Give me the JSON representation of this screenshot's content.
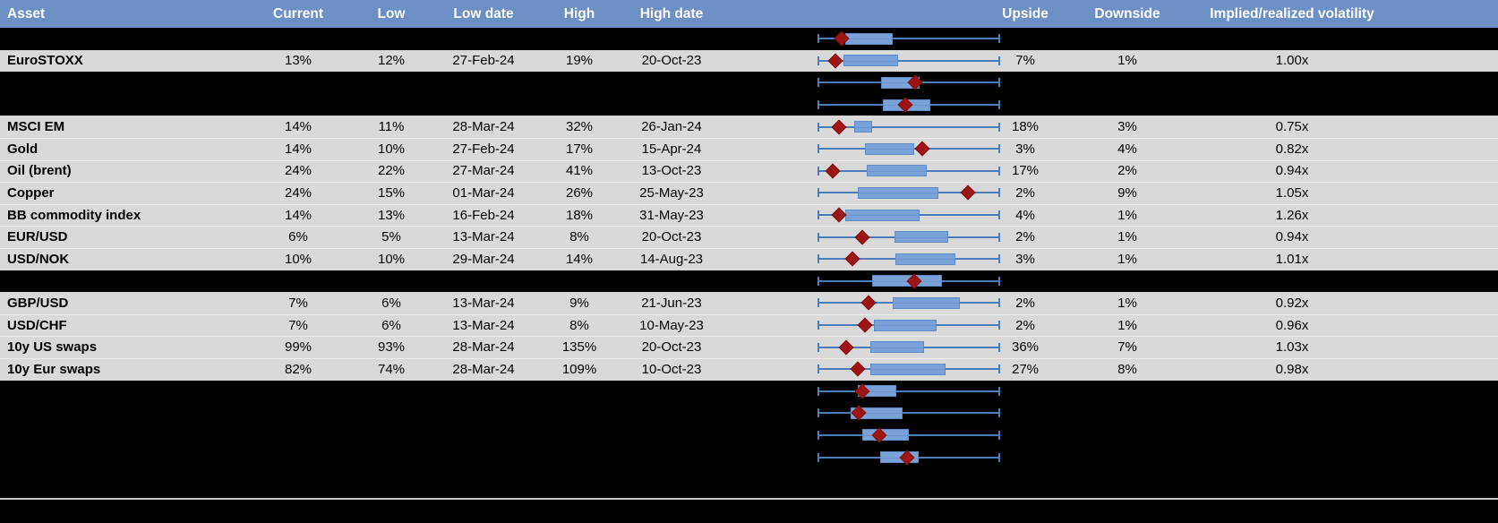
{
  "header": {
    "columns": [
      "Asset",
      "Current",
      "Low",
      "Low date",
      "High",
      "High date",
      "Upside",
      "Downside",
      "Implied/realized volatility"
    ]
  },
  "colors": {
    "header_bg": "#6b90c6",
    "header_text": "#ffffff",
    "row_bg": "#d9d9d9",
    "hidden_row_bg": "#000000",
    "whisker_blue": "#4a7ebb",
    "box_fill": "#7ba2d8",
    "box_border": "#5f8cc4",
    "marker_red": "#9e1414",
    "bottom_separator": "#c9c9c9"
  },
  "rows": [
    {
      "kind": "hidden",
      "label": "",
      "plot": {
        "box": [
          0.15,
          0.41
        ],
        "marker": 0.13
      }
    },
    {
      "kind": "asset",
      "label": "EuroSTOXX",
      "current": "13%",
      "low": "12%",
      "low_date": "27-Feb-24",
      "high": "19%",
      "high_date": "20-Oct-23",
      "upside": "7%",
      "downside": "1%",
      "implied": "1.00x",
      "plot": {
        "box": [
          0.14,
          0.44
        ],
        "marker": 0.1
      }
    },
    {
      "kind": "hidden",
      "label": "",
      "plot": {
        "box": [
          0.35,
          0.56
        ],
        "marker": 0.535
      }
    },
    {
      "kind": "hidden",
      "label": "",
      "plot": {
        "box": [
          0.36,
          0.62
        ],
        "marker": 0.48
      }
    },
    {
      "kind": "asset",
      "label": "MSCI EM",
      "current": "14%",
      "low": "11%",
      "low_date": "28-Mar-24",
      "high": "32%",
      "high_date": "26-Jan-24",
      "upside": "18%",
      "downside": "3%",
      "implied": "0.75x",
      "plot": {
        "box": [
          0.2,
          0.3
        ],
        "marker": 0.12
      }
    },
    {
      "kind": "asset",
      "label": "Gold",
      "current": "14%",
      "low": "10%",
      "low_date": "27-Feb-24",
      "high": "17%",
      "high_date": "15-Apr-24",
      "upside": "3%",
      "downside": "4%",
      "implied": "0.82x",
      "plot": {
        "box": [
          0.26,
          0.53
        ],
        "marker": 0.575
      }
    },
    {
      "kind": "asset",
      "label": "Oil (brent)",
      "current": "24%",
      "low": "22%",
      "low_date": "27-Mar-24",
      "high": "41%",
      "high_date": "13-Oct-23",
      "upside": "17%",
      "downside": "2%",
      "implied": "0.94x",
      "plot": {
        "box": [
          0.27,
          0.6
        ],
        "marker": 0.085
      }
    },
    {
      "kind": "asset",
      "label": "Copper",
      "current": "24%",
      "low": "15%",
      "low_date": "01-Mar-24",
      "high": "26%",
      "high_date": "25-May-23",
      "upside": "2%",
      "downside": "9%",
      "implied": "1.05x",
      "plot": {
        "box": [
          0.22,
          0.66
        ],
        "marker": 0.825
      }
    },
    {
      "kind": "asset",
      "label": "BB commodity index",
      "current": "14%",
      "low": "13%",
      "low_date": "16-Feb-24",
      "high": "18%",
      "high_date": "31-May-23",
      "upside": "4%",
      "downside": "1%",
      "implied": "1.26x",
      "plot": {
        "box": [
          0.15,
          0.56
        ],
        "marker": 0.12
      }
    },
    {
      "kind": "asset",
      "label": "EUR/USD",
      "current": "6%",
      "low": "5%",
      "low_date": "13-Mar-24",
      "high": "8%",
      "high_date": "20-Oct-23",
      "upside": "2%",
      "downside": "1%",
      "implied": "0.94x",
      "plot": {
        "box": [
          0.42,
          0.715
        ],
        "marker": 0.245
      }
    },
    {
      "kind": "asset",
      "label": "USD/NOK",
      "current": "10%",
      "low": "10%",
      "low_date": "29-Mar-24",
      "high": "14%",
      "high_date": "14-Aug-23",
      "upside": "3%",
      "downside": "1%",
      "implied": "1.01x",
      "plot": {
        "box": [
          0.425,
          0.755
        ],
        "marker": 0.19
      }
    },
    {
      "kind": "hidden",
      "label": "",
      "plot": {
        "box": [
          0.3,
          0.68
        ],
        "marker": 0.53
      }
    },
    {
      "kind": "asset",
      "label": "GBP/USD",
      "current": "7%",
      "low": "6%",
      "low_date": "13-Mar-24",
      "high": "9%",
      "high_date": "21-Jun-23",
      "upside": "2%",
      "downside": "1%",
      "implied": "0.92x",
      "plot": {
        "box": [
          0.41,
          0.78
        ],
        "marker": 0.28
      }
    },
    {
      "kind": "asset",
      "label": "USD/CHF",
      "current": "7%",
      "low": "6%",
      "low_date": "13-Mar-24",
      "high": "8%",
      "high_date": "10-May-23",
      "upside": "2%",
      "downside": "1%",
      "implied": "0.96x",
      "plot": {
        "box": [
          0.31,
          0.65
        ],
        "marker": 0.26
      }
    },
    {
      "kind": "asset",
      "label": "10y US swaps",
      "current": "99%",
      "low": "93%",
      "low_date": "28-Mar-24",
      "high": "135%",
      "high_date": "20-Oct-23",
      "upside": "36%",
      "downside": "7%",
      "implied": "1.03x",
      "plot": {
        "box": [
          0.29,
          0.585
        ],
        "marker": 0.155
      }
    },
    {
      "kind": "asset",
      "label": "10y Eur swaps",
      "current": "82%",
      "low": "74%",
      "low_date": "28-Mar-24",
      "high": "109%",
      "high_date": "10-Oct-23",
      "upside": "27%",
      "downside": "8%",
      "implied": "0.98x",
      "plot": {
        "box": [
          0.29,
          0.7
        ],
        "marker": 0.22
      }
    },
    {
      "kind": "hidden",
      "label": "",
      "plot": {
        "box": [
          0.22,
          0.43
        ],
        "marker": 0.245
      }
    },
    {
      "kind": "hidden",
      "label": "",
      "plot": {
        "box": [
          0.18,
          0.465
        ],
        "marker": 0.225
      }
    },
    {
      "kind": "hidden",
      "label": "",
      "plot": {
        "box": [
          0.245,
          0.5
        ],
        "marker": 0.34
      }
    },
    {
      "kind": "hidden",
      "label": "",
      "plot": {
        "box": [
          0.345,
          0.555
        ],
        "marker": 0.49
      }
    }
  ],
  "chart_data": {
    "type": "table",
    "title": "Asset volatility: current vs 12m low/high with in-row box plots",
    "columns": [
      "Asset",
      "Current",
      "Low",
      "Low date",
      "High",
      "High date",
      "Upside",
      "Downside",
      "Implied/realized volatility"
    ],
    "rows": [
      [
        "EuroSTOXX",
        "13%",
        "12%",
        "27-Feb-24",
        "19%",
        "20-Oct-23",
        "7%",
        "1%",
        "1.00x"
      ],
      [
        "MSCI EM",
        "14%",
        "11%",
        "28-Mar-24",
        "32%",
        "26-Jan-24",
        "18%",
        "3%",
        "0.75x"
      ],
      [
        "Gold",
        "14%",
        "10%",
        "27-Feb-24",
        "17%",
        "15-Apr-24",
        "3%",
        "4%",
        "0.82x"
      ],
      [
        "Oil (brent)",
        "24%",
        "22%",
        "27-Mar-24",
        "41%",
        "13-Oct-23",
        "17%",
        "2%",
        "0.94x"
      ],
      [
        "Copper",
        "24%",
        "15%",
        "01-Mar-24",
        "26%",
        "25-May-23",
        "2%",
        "9%",
        "1.05x"
      ],
      [
        "BB commodity index",
        "14%",
        "13%",
        "16-Feb-24",
        "18%",
        "31-May-23",
        "4%",
        "1%",
        "1.26x"
      ],
      [
        "EUR/USD",
        "6%",
        "5%",
        "13-Mar-24",
        "8%",
        "20-Oct-23",
        "2%",
        "1%",
        "0.94x"
      ],
      [
        "USD/NOK",
        "10%",
        "10%",
        "29-Mar-24",
        "14%",
        "14-Aug-23",
        "3%",
        "1%",
        "1.01x"
      ],
      [
        "GBP/USD",
        "7%",
        "6%",
        "13-Mar-24",
        "9%",
        "21-Jun-23",
        "2%",
        "1%",
        "0.92x"
      ],
      [
        "USD/CHF",
        "7%",
        "6%",
        "13-Mar-24",
        "8%",
        "10-May-23",
        "2%",
        "1%",
        "0.96x"
      ],
      [
        "10y US swaps",
        "99%",
        "93%",
        "28-Mar-24",
        "135%",
        "20-Oct-23",
        "36%",
        "7%",
        "1.03x"
      ],
      [
        "10y Eur swaps",
        "82%",
        "74%",
        "28-Mar-24",
        "109%",
        "10-Oct-23",
        "27%",
        "8%",
        "0.98x"
      ]
    ],
    "boxplot_column": {
      "description": "Each row shows a horizontal box plot: full-range whisker with end caps, blue interquartile box, dark-red diamond marker for the current value. No numeric axis is shown; box and marker positions are fractions [0-1] of the whisker span. Rows labelled hidden-N are blacked-out rows whose box plots remain visible.",
      "whisker_span": [
        0,
        1
      ],
      "items": [
        {
          "row": "hidden-1",
          "box": [
            0.15,
            0.41
          ],
          "marker": 0.13
        },
        {
          "row": "EuroSTOXX",
          "box": [
            0.14,
            0.44
          ],
          "marker": 0.1
        },
        {
          "row": "hidden-2",
          "box": [
            0.35,
            0.56
          ],
          "marker": 0.535
        },
        {
          "row": "hidden-3",
          "box": [
            0.36,
            0.62
          ],
          "marker": 0.48
        },
        {
          "row": "MSCI EM",
          "box": [
            0.2,
            0.3
          ],
          "marker": 0.12
        },
        {
          "row": "Gold",
          "box": [
            0.26,
            0.53
          ],
          "marker": 0.575
        },
        {
          "row": "Oil (brent)",
          "box": [
            0.27,
            0.6
          ],
          "marker": 0.085
        },
        {
          "row": "Copper",
          "box": [
            0.22,
            0.66
          ],
          "marker": 0.825
        },
        {
          "row": "BB commodity index",
          "box": [
            0.15,
            0.56
          ],
          "marker": 0.12
        },
        {
          "row": "EUR/USD",
          "box": [
            0.42,
            0.715
          ],
          "marker": 0.245
        },
        {
          "row": "USD/NOK",
          "box": [
            0.425,
            0.755
          ],
          "marker": 0.19
        },
        {
          "row": "hidden-4",
          "box": [
            0.3,
            0.68
          ],
          "marker": 0.53
        },
        {
          "row": "GBP/USD",
          "box": [
            0.41,
            0.78
          ],
          "marker": 0.28
        },
        {
          "row": "USD/CHF",
          "box": [
            0.31,
            0.65
          ],
          "marker": 0.26
        },
        {
          "row": "10y US swaps",
          "box": [
            0.29,
            0.585
          ],
          "marker": 0.155
        },
        {
          "row": "10y Eur swaps",
          "box": [
            0.29,
            0.7
          ],
          "marker": 0.22
        },
        {
          "row": "hidden-5",
          "box": [
            0.22,
            0.43
          ],
          "marker": 0.245
        },
        {
          "row": "hidden-6",
          "box": [
            0.18,
            0.465
          ],
          "marker": 0.225
        },
        {
          "row": "hidden-7",
          "box": [
            0.245,
            0.5
          ],
          "marker": 0.34
        },
        {
          "row": "hidden-8",
          "box": [
            0.345,
            0.555
          ],
          "marker": 0.49
        }
      ]
    }
  }
}
